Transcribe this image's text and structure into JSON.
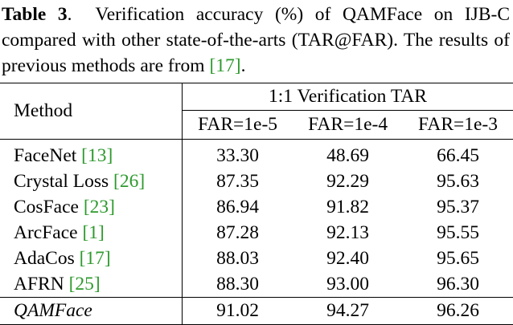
{
  "caption": {
    "label": "Table 3",
    "sep": ".",
    "text_part1": "Verification accuracy (%) of QAMFace on IJB-C compared with other state-of-the-arts (TAR@FAR). The results of previous methods are from ",
    "ref": "[17]",
    "text_part2": "."
  },
  "table": {
    "method_header": "Method",
    "group_header": "1:1 Verification TAR",
    "columns": [
      "FAR=1e-5",
      "FAR=1e-4",
      "FAR=1e-3"
    ],
    "rows": [
      {
        "method": "FaceNet",
        "ref": "[13]",
        "values": [
          "33.30",
          "48.69",
          "66.45"
        ]
      },
      {
        "method": "Crystal Loss",
        "ref": "[26]",
        "values": [
          "87.35",
          "92.29",
          "95.63"
        ]
      },
      {
        "method": "CosFace",
        "ref": "[23]",
        "values": [
          "86.94",
          "91.82",
          "95.37"
        ]
      },
      {
        "method": "ArcFace",
        "ref": "[1]",
        "values": [
          "87.28",
          "92.13",
          "95.55"
        ]
      },
      {
        "method": "AdaCos",
        "ref": "[17]",
        "values": [
          "88.03",
          "92.40",
          "95.65"
        ]
      },
      {
        "method": "AFRN",
        "ref": "[25]",
        "values": [
          "88.30",
          "93.00",
          "96.30"
        ]
      }
    ],
    "ours": {
      "method": "QAMFace",
      "values": [
        "91.02",
        "94.27",
        "96.26"
      ]
    }
  },
  "colors": {
    "reference_link": "#2e9a2e",
    "text": "#000000"
  }
}
